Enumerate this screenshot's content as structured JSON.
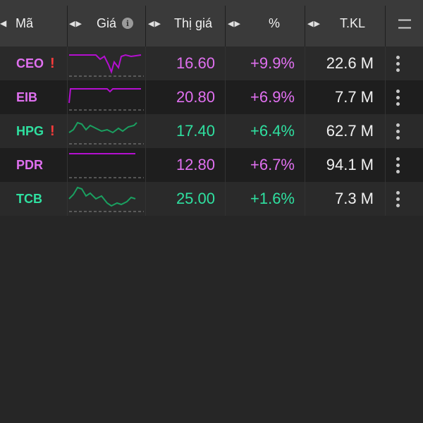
{
  "header": {
    "col_symbol": "Mã",
    "col_price": "Giá",
    "col_market_price": "Thị giá",
    "col_percent": "%",
    "col_volume": "T.KL"
  },
  "rows": [
    {
      "symbol": "CEO",
      "alert": "!",
      "price": "16.60",
      "change": "+9.9%",
      "volume": "22.6 M",
      "color": "#e070f0",
      "spark_color": "#b40fd0"
    },
    {
      "symbol": "EIB",
      "alert": "",
      "price": "20.80",
      "change": "+6.9%",
      "volume": "7.7 M",
      "color": "#e070f0",
      "spark_color": "#b40fd0"
    },
    {
      "symbol": "HPG",
      "alert": "!",
      "price": "17.40",
      "change": "+6.4%",
      "volume": "62.7 M",
      "color": "#2fe0a0",
      "spark_color": "#1aa060"
    },
    {
      "symbol": "PDR",
      "alert": "",
      "price": "12.80",
      "change": "+6.7%",
      "volume": "94.1 M",
      "color": "#e070f0",
      "spark_color": "#b40fd0"
    },
    {
      "symbol": "TCB",
      "alert": "",
      "price": "25.00",
      "change": "+1.6%",
      "volume": "7.3 M",
      "color": "#2fe0a0",
      "spark_color": "#1aa060"
    }
  ],
  "icons": {
    "info": "info-icon",
    "menu": "hamburger-icon",
    "row_menu": "more-vert-icon",
    "alert": "exclamation-icon",
    "sort": "sort-arrows-icon"
  }
}
